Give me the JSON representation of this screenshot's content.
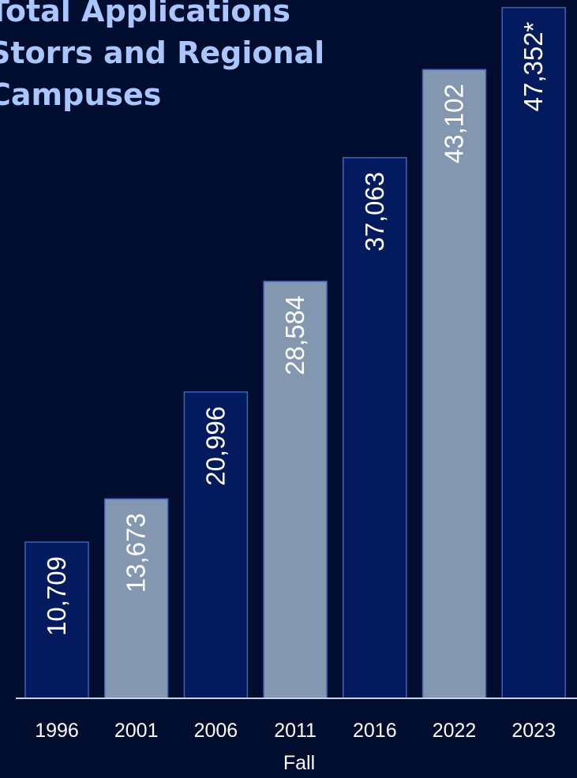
{
  "title_lines": [
    "Total Applications",
    "Storrs and Regional",
    "Campuses"
  ],
  "colors": {
    "background": "#000d2e",
    "dark_bar": "#041a5e",
    "light_bar": "#8497b1",
    "bar_stroke": "#3f63b8",
    "title": "#a9c6ff",
    "text": "#ffffff"
  },
  "chart_data": {
    "type": "bar",
    "title": "Total Applications Storrs and Regional Campuses",
    "xlabel": "Fall",
    "ylabel": "",
    "categories": [
      "1996",
      "2001",
      "2006",
      "2011",
      "2016",
      "2022",
      "2023"
    ],
    "values": [
      10709,
      13673,
      20996,
      28584,
      37063,
      43102,
      47352
    ],
    "labels": [
      "10,709",
      "13,673",
      "20,996",
      "28,584",
      "37,063",
      "43,102",
      "47,352*"
    ],
    "bar_colors": [
      "dark",
      "light",
      "dark",
      "light",
      "dark",
      "light",
      "dark"
    ],
    "ylim": [
      0,
      47600
    ],
    "grid": false,
    "legend": "none"
  }
}
